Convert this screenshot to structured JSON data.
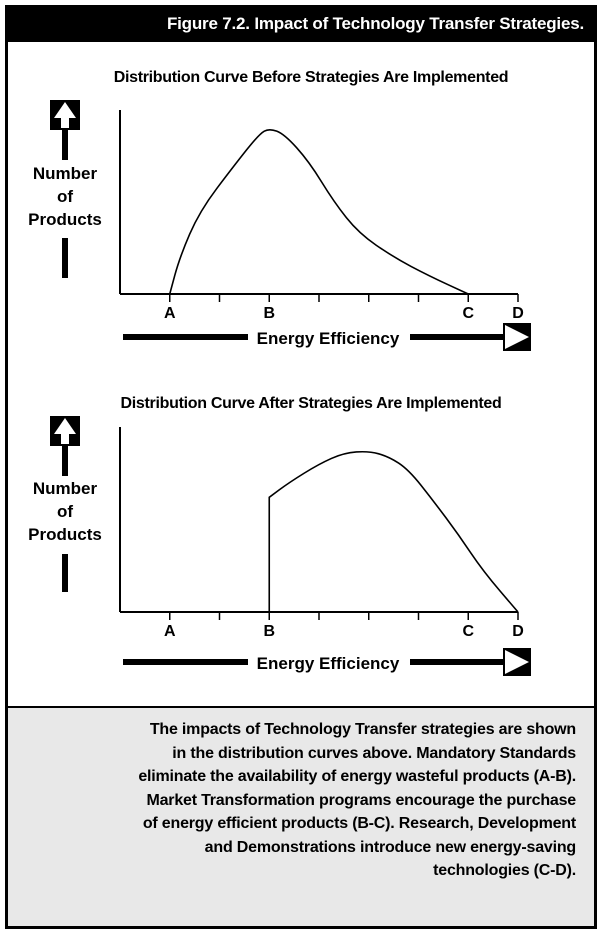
{
  "figure": {
    "title": "Figure 7.2. Impact of Technology Transfer Strategies."
  },
  "colors": {
    "ink": "#000000",
    "caption_bg": "#e8e8e8"
  },
  "icons": {
    "y_arrow": "up-arrow-icon",
    "x_arrow": "right-arrow-icon"
  },
  "caption": "The impacts of Technology Transfer strategies are shown in the distribution curves above. Mandatory Standards eliminate the availability of energy wasteful products (A-B). Market Transformation programs encourage the purchase of energy efficient products (B-C). Research, Development and Demonstrations introduce new energy-saving technologies (C-D).",
  "chart_data": [
    {
      "type": "line",
      "title": "Distribution Curve Before Strategies Are Implemented",
      "xlabel": "Energy Efficiency",
      "ylabel": [
        "Number",
        "of",
        "Products"
      ],
      "x_ticks": [
        "A",
        "B",
        "C",
        "D"
      ],
      "x_tick_positions": [
        1,
        3,
        7,
        8
      ],
      "xlim": [
        0,
        8
      ],
      "ylim": [
        0,
        100
      ],
      "series": [
        {
          "x": [
            1,
            1.2,
            1.6,
            2.3,
            2.8,
            3.0,
            3.3,
            3.8,
            4.3,
            4.8,
            5.5,
            6.2,
            7.0
          ],
          "y": [
            0,
            20,
            45,
            70,
            87,
            90,
            87,
            72,
            50,
            33,
            20,
            10,
            0
          ]
        }
      ]
    },
    {
      "type": "line",
      "title": "Distribution Curve After Strategies Are Implemented",
      "xlabel": "Energy Efficiency",
      "ylabel": [
        "Number",
        "of",
        "Products"
      ],
      "x_ticks": [
        "A",
        "B",
        "C",
        "D"
      ],
      "x_tick_positions": [
        1,
        3,
        7,
        8
      ],
      "xlim": [
        0,
        8
      ],
      "ylim": [
        0,
        100
      ],
      "series": [
        {
          "x": [
            3,
            3,
            3.4,
            4.0,
            4.5,
            5.0,
            5.4,
            5.8,
            6.3,
            6.8,
            7.3,
            8.0
          ],
          "y": [
            0,
            62,
            70,
            80,
            86,
            87,
            84,
            77,
            60,
            42,
            22,
            0
          ]
        }
      ]
    }
  ]
}
